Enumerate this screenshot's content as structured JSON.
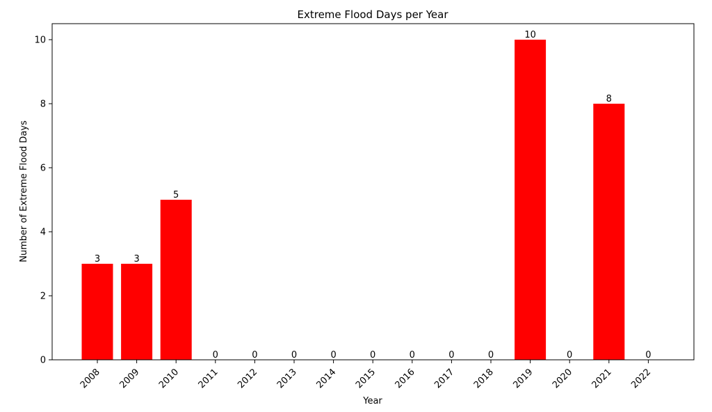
{
  "chart_data": {
    "type": "bar",
    "title": "Extreme Flood Days per Year",
    "xlabel": "Year",
    "ylabel": "Number of Extreme Flood Days",
    "categories": [
      "2008",
      "2009",
      "2010",
      "2011",
      "2012",
      "2013",
      "2014",
      "2015",
      "2016",
      "2017",
      "2018",
      "2019",
      "2020",
      "2021",
      "2022"
    ],
    "values": [
      3,
      3,
      5,
      0,
      0,
      0,
      0,
      0,
      0,
      0,
      0,
      10,
      0,
      8,
      0
    ],
    "ylim": [
      0,
      10.5
    ],
    "yticks": [
      0,
      2,
      4,
      6,
      8,
      10
    ],
    "bar_color": "#ff0000",
    "grid": false,
    "x_tick_rotation_deg": 45
  }
}
